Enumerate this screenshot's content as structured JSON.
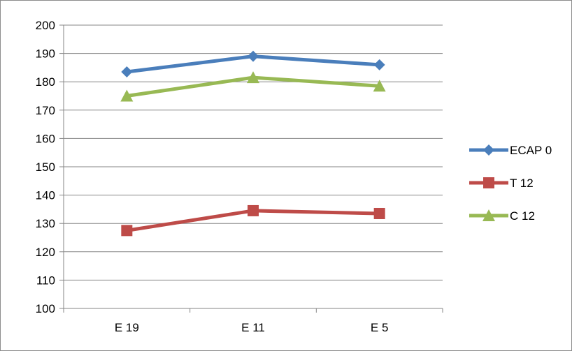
{
  "chart_data": {
    "type": "line",
    "categories": [
      "E 19",
      "E 11",
      "E 5"
    ],
    "ylim": [
      100,
      200
    ],
    "y_ticks": [
      "100",
      "110",
      "120",
      "130",
      "140",
      "150",
      "160",
      "170",
      "180",
      "190",
      "200"
    ],
    "grid": true,
    "legend_position": "right",
    "series": [
      {
        "name": "ECAP 0",
        "values": [
          183.5,
          189,
          186
        ],
        "color": "#4a7ebb",
        "marker": "diamond"
      },
      {
        "name": "T 12",
        "values": [
          127.5,
          134.5,
          133.5
        ],
        "color": "#be4b48",
        "marker": "square"
      },
      {
        "name": "C 12",
        "values": [
          175,
          181.5,
          178.5
        ],
        "color": "#98b954",
        "marker": "triangle"
      }
    ]
  }
}
